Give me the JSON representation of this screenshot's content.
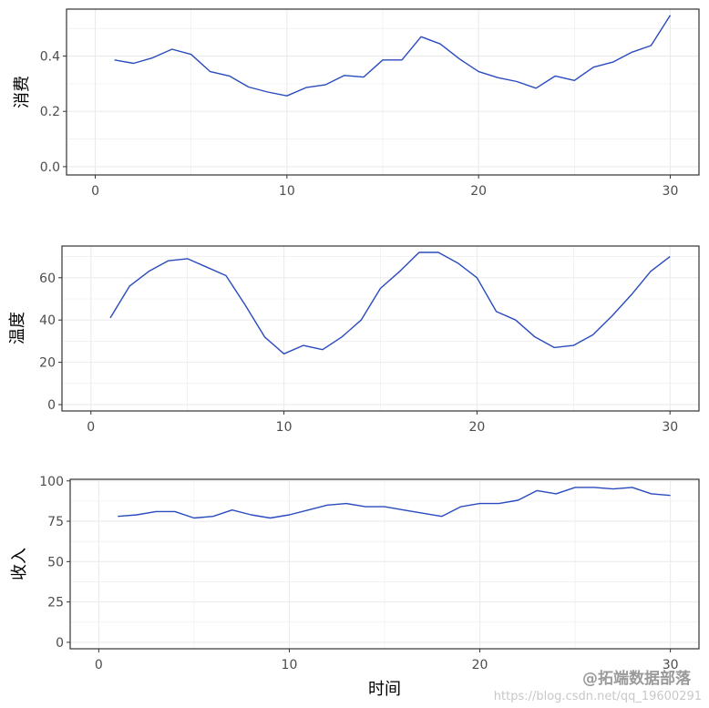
{
  "chart_data": [
    {
      "type": "line",
      "ylabel": "消费",
      "xlabel": "",
      "xlim": [
        -1.5,
        31.5
      ],
      "ylim": [
        -0.03,
        0.57
      ],
      "x_ticks": [
        0,
        10,
        20,
        30
      ],
      "y_ticks": [
        0.0,
        0.2,
        0.4
      ],
      "y_tick_labels": [
        "0.0",
        "0.2",
        "0.4"
      ],
      "grid": true,
      "color": "#2a4bbd",
      "x": [
        1,
        2,
        3,
        4,
        5,
        6,
        7,
        8,
        9,
        10,
        11,
        12,
        13,
        14,
        15,
        16,
        17,
        18,
        19,
        20,
        21,
        22,
        23,
        24,
        25,
        26,
        27,
        28,
        29,
        30
      ],
      "values": [
        0.386,
        0.374,
        0.394,
        0.425,
        0.406,
        0.344,
        0.328,
        0.288,
        0.27,
        0.256,
        0.286,
        0.296,
        0.33,
        0.324,
        0.386,
        0.386,
        0.47,
        0.444,
        0.39,
        0.344,
        0.322,
        0.308,
        0.284,
        0.328,
        0.312,
        0.36,
        0.378,
        0.414,
        0.438,
        0.548
      ]
    },
    {
      "type": "line",
      "ylabel": "温度",
      "xlabel": "",
      "xlim": [
        -1.5,
        31.5
      ],
      "ylim": [
        -3,
        75
      ],
      "x_ticks": [
        0,
        10,
        20,
        30
      ],
      "y_ticks": [
        0,
        20,
        40,
        60
      ],
      "y_tick_labels": [
        "0",
        "20",
        "40",
        "60"
      ],
      "grid": true,
      "color": "#2a4bbd",
      "x": [
        1,
        2,
        3,
        4,
        5,
        6,
        7,
        8,
        9,
        10,
        11,
        12,
        13,
        14,
        15,
        16,
        17,
        18,
        19,
        20,
        21,
        22,
        23,
        24,
        25,
        26,
        27,
        28,
        29,
        30
      ],
      "values": [
        41,
        56,
        63,
        68,
        69,
        65,
        61,
        47,
        32,
        24,
        28,
        26,
        32,
        40,
        55,
        63,
        72,
        72,
        67,
        60,
        44,
        40,
        32,
        27,
        28,
        33,
        42,
        52,
        63,
        70
      ]
    },
    {
      "type": "line",
      "ylabel": "收入",
      "xlabel": "时间",
      "xlim": [
        -1.5,
        31.5
      ],
      "ylim": [
        -4,
        101
      ],
      "x_ticks": [
        0,
        10,
        20,
        30
      ],
      "y_ticks": [
        0,
        25,
        50,
        75,
        100
      ],
      "y_tick_labels": [
        "0",
        "25",
        "50",
        "75",
        "100"
      ],
      "grid": true,
      "color": "#2a4bbd",
      "x": [
        1,
        2,
        3,
        4,
        5,
        6,
        7,
        8,
        9,
        10,
        11,
        12,
        13,
        14,
        15,
        16,
        17,
        18,
        19,
        20,
        21,
        22,
        23,
        24,
        25,
        26,
        27,
        28,
        29,
        30
      ],
      "values": [
        78,
        79,
        81,
        81,
        77,
        78,
        82,
        79,
        77,
        79,
        82,
        85,
        86,
        84,
        84,
        82,
        80,
        78,
        84,
        86,
        86,
        88,
        94,
        92,
        96,
        96,
        95,
        96,
        92,
        91
      ]
    }
  ],
  "watermark": {
    "url": "https://blog.csdn.net/qq_19600291",
    "brand": "@拓端数据部落"
  }
}
